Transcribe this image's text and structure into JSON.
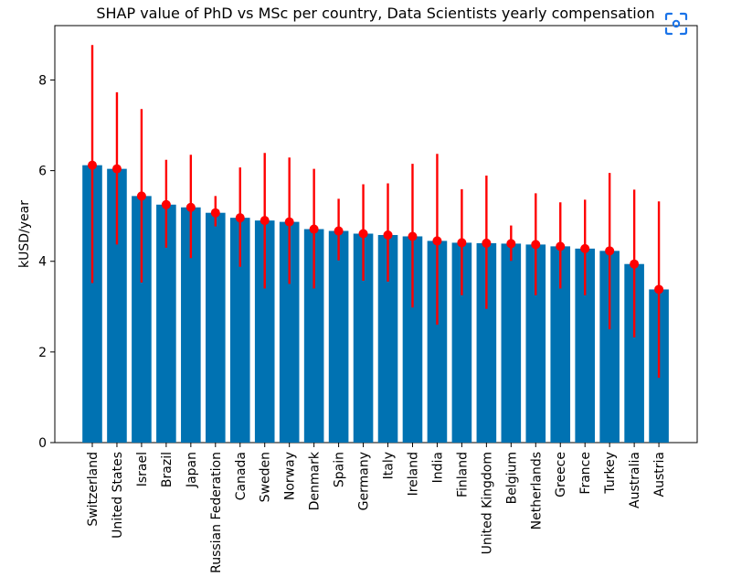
{
  "chart_data": {
    "type": "bar",
    "title": "SHAP value of PhD vs MSc per country, Data Scientists yearly compensation",
    "xlabel": "",
    "ylabel": "kUSD/year",
    "ylim": [
      0,
      9.2
    ],
    "yticks": [
      0,
      2,
      4,
      6,
      8
    ],
    "grid": false,
    "bar_color": "#0072b2",
    "error_color": "#ff0000",
    "categories": [
      "Switzerland",
      "United States",
      "Israel",
      "Brazil",
      "Japan",
      "Russian Federation",
      "Canada",
      "Sweden",
      "Norway",
      "Denmark",
      "Spain",
      "Germany",
      "Italy",
      "Ireland",
      "India",
      "Finland",
      "United Kingdom",
      "Belgium",
      "Netherlands",
      "Greece",
      "France",
      "Turkey",
      "Australia",
      "Austria"
    ],
    "values": [
      6.12,
      6.04,
      5.44,
      5.25,
      5.19,
      5.07,
      4.96,
      4.9,
      4.87,
      4.71,
      4.67,
      4.61,
      4.58,
      4.55,
      4.45,
      4.41,
      4.4,
      4.39,
      4.37,
      4.33,
      4.28,
      4.23,
      3.94,
      3.38
    ],
    "error_low": [
      3.52,
      4.37,
      3.53,
      4.3,
      4.07,
      4.77,
      3.88,
      3.4,
      3.5,
      3.4,
      4.02,
      3.57,
      3.55,
      2.98,
      2.6,
      3.25,
      2.95,
      4.01,
      3.25,
      3.4,
      3.25,
      2.5,
      2.32,
      1.43
    ],
    "error_high": [
      8.77,
      7.73,
      7.36,
      6.24,
      6.35,
      5.44,
      6.07,
      6.39,
      6.29,
      6.04,
      5.38,
      5.7,
      5.72,
      6.15,
      6.37,
      5.59,
      5.89,
      4.79,
      5.5,
      5.3,
      5.36,
      5.95,
      5.58,
      5.32
    ]
  },
  "overlay": {
    "scan_icon": "scan-image-icon"
  }
}
